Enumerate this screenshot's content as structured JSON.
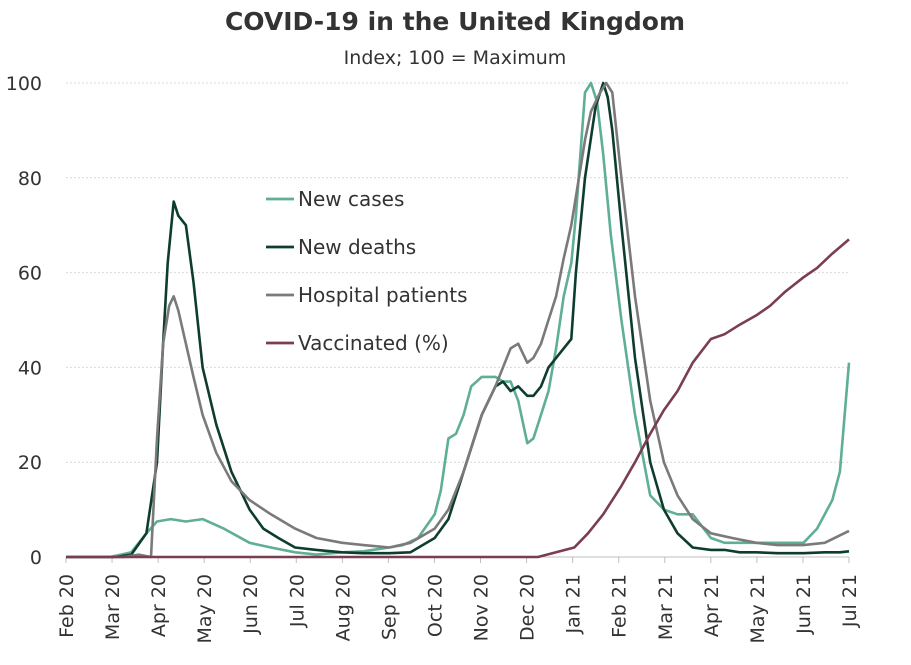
{
  "chart_data": {
    "type": "line",
    "title": "COVID-19 in the United Kingdom",
    "subtitle": "Index; 100 = Maximum",
    "xlabel": "",
    "ylabel": "",
    "ylim": [
      0,
      100
    ],
    "yticks": [
      0,
      20,
      40,
      60,
      80,
      100
    ],
    "grid": "horizontal",
    "legend_position": "center-left",
    "x_ticks": [
      "Feb 20",
      "Mar 20",
      "Apr 20",
      "May 20",
      "Jun 20",
      "Jul 20",
      "Aug 20",
      "Sep 20",
      "Oct 20",
      "Nov 20",
      "Dec 20",
      "Jan 21",
      "Feb 21",
      "Mar 21",
      "Apr 21",
      "May 21",
      "Jun 21",
      "Jul 21"
    ],
    "series": [
      {
        "name": "New cases",
        "color": "#5fae97",
        "x": [
          "2020-02-01",
          "2020-03-01",
          "2020-03-15",
          "2020-03-25",
          "2020-04-01",
          "2020-04-10",
          "2020-04-20",
          "2020-05-01",
          "2020-05-15",
          "2020-06-01",
          "2020-06-15",
          "2020-07-01",
          "2020-07-15",
          "2020-08-01",
          "2020-08-15",
          "2020-09-01",
          "2020-09-10",
          "2020-09-20",
          "2020-10-01",
          "2020-10-05",
          "2020-10-10",
          "2020-10-15",
          "2020-10-20",
          "2020-10-25",
          "2020-11-01",
          "2020-11-10",
          "2020-11-15",
          "2020-11-20",
          "2020-11-25",
          "2020-12-01",
          "2020-12-05",
          "2020-12-10",
          "2020-12-15",
          "2020-12-20",
          "2020-12-25",
          "2020-12-30",
          "2021-01-02",
          "2021-01-05",
          "2021-01-08",
          "2021-01-12",
          "2021-01-16",
          "2021-01-20",
          "2021-01-25",
          "2021-02-01",
          "2021-02-10",
          "2021-02-20",
          "2021-03-01",
          "2021-03-10",
          "2021-03-20",
          "2021-04-01",
          "2021-04-10",
          "2021-04-20",
          "2021-05-01",
          "2021-05-10",
          "2021-05-20",
          "2021-06-01",
          "2021-06-10",
          "2021-06-20",
          "2021-06-25",
          "2021-07-01"
        ],
        "y": [
          0,
          0,
          1,
          5,
          7.5,
          8,
          7.5,
          8,
          6,
          3,
          2,
          1,
          0.5,
          1,
          1.2,
          2,
          2.5,
          4,
          9,
          14,
          25,
          26,
          30,
          36,
          38,
          38,
          37,
          37,
          33,
          24,
          25,
          30,
          35,
          44,
          55,
          62,
          72,
          85,
          98,
          100,
          96,
          85,
          68,
          50,
          30,
          13,
          10,
          9,
          9,
          4,
          3,
          3,
          3,
          3,
          3,
          3,
          6,
          12,
          18,
          41
        ]
      },
      {
        "name": "New deaths",
        "color": "#0e3d30",
        "x": [
          "2020-02-01",
          "2020-03-05",
          "2020-03-15",
          "2020-03-25",
          "2020-04-01",
          "2020-04-05",
          "2020-04-08",
          "2020-04-12",
          "2020-04-15",
          "2020-04-20",
          "2020-04-25",
          "2020-05-01",
          "2020-05-10",
          "2020-05-20",
          "2020-06-01",
          "2020-06-10",
          "2020-06-20",
          "2020-07-01",
          "2020-07-15",
          "2020-08-01",
          "2020-08-15",
          "2020-09-01",
          "2020-09-15",
          "2020-10-01",
          "2020-10-10",
          "2020-10-20",
          "2020-11-01",
          "2020-11-10",
          "2020-11-15",
          "2020-11-20",
          "2020-11-25",
          "2020-12-01",
          "2020-12-05",
          "2020-12-10",
          "2020-12-15",
          "2020-12-20",
          "2020-12-25",
          "2020-12-30",
          "2021-01-02",
          "2021-01-08",
          "2021-01-15",
          "2021-01-20",
          "2021-01-23",
          "2021-01-26",
          "2021-02-01",
          "2021-02-10",
          "2021-02-20",
          "2021-03-01",
          "2021-03-10",
          "2021-03-20",
          "2021-04-01",
          "2021-04-10",
          "2021-04-20",
          "2021-05-01",
          "2021-05-15",
          "2021-06-01",
          "2021-06-15",
          "2021-06-25",
          "2021-07-01"
        ],
        "y": [
          0,
          0,
          0.5,
          5,
          20,
          45,
          62,
          75,
          72,
          70,
          58,
          40,
          28,
          18,
          10,
          6,
          4,
          2,
          1.5,
          1,
          0.8,
          0.8,
          1,
          4,
          8,
          18,
          30,
          36,
          37,
          35,
          36,
          34,
          34,
          36,
          40,
          42,
          44,
          46,
          60,
          80,
          95,
          100,
          97,
          90,
          70,
          42,
          20,
          10,
          5,
          2,
          1.5,
          1.5,
          1,
          1,
          0.8,
          0.8,
          1,
          1,
          1.2
        ]
      },
      {
        "name": "Hospital patients",
        "color": "#7a7a7a",
        "x": [
          "2020-02-01",
          "2020-03-10",
          "2020-03-20",
          "2020-03-28",
          "2020-04-01",
          "2020-04-05",
          "2020-04-09",
          "2020-04-12",
          "2020-04-15",
          "2020-04-20",
          "2020-04-25",
          "2020-05-01",
          "2020-05-10",
          "2020-05-20",
          "2020-06-01",
          "2020-06-15",
          "2020-07-01",
          "2020-07-15",
          "2020-08-01",
          "2020-08-15",
          "2020-09-01",
          "2020-09-15",
          "2020-10-01",
          "2020-10-10",
          "2020-10-20",
          "2020-11-01",
          "2020-11-10",
          "2020-11-15",
          "2020-11-20",
          "2020-11-25",
          "2020-12-01",
          "2020-12-05",
          "2020-12-10",
          "2020-12-15",
          "2020-12-20",
          "2020-12-25",
          "2020-12-30",
          "2021-01-02",
          "2021-01-08",
          "2021-01-12",
          "2021-01-18",
          "2021-01-22",
          "2021-01-26",
          "2021-02-01",
          "2021-02-10",
          "2021-02-20",
          "2021-03-01",
          "2021-03-10",
          "2021-03-20",
          "2021-04-01",
          "2021-04-15",
          "2021-05-01",
          "2021-05-15",
          "2021-06-01",
          "2021-06-15",
          "2021-07-01"
        ],
        "y": [
          0,
          0,
          0.5,
          0,
          25,
          45,
          53,
          55,
          52,
          45,
          38,
          30,
          22,
          16,
          12,
          9,
          6,
          4,
          3,
          2.5,
          2,
          3,
          6,
          10,
          18,
          30,
          36,
          40,
          44,
          45,
          41,
          42,
          45,
          50,
          55,
          63,
          70,
          76,
          88,
          94,
          98,
          100,
          98,
          80,
          55,
          33,
          20,
          13,
          8,
          5,
          4,
          3,
          2.5,
          2.5,
          3,
          5.5
        ]
      },
      {
        "name": "Vaccinated (%)",
        "color": "#7b3e50",
        "x": [
          "2020-02-01",
          "2020-12-08",
          "2020-12-20",
          "2021-01-01",
          "2021-01-10",
          "2021-01-20",
          "2021-02-01",
          "2021-02-10",
          "2021-02-20",
          "2021-03-01",
          "2021-03-10",
          "2021-03-20",
          "2021-04-01",
          "2021-04-10",
          "2021-04-20",
          "2021-05-01",
          "2021-05-10",
          "2021-05-20",
          "2021-06-01",
          "2021-06-10",
          "2021-06-20",
          "2021-07-01"
        ],
        "y": [
          0,
          0,
          1,
          2,
          5,
          9,
          15,
          20,
          26,
          31,
          35,
          41,
          46,
          47,
          49,
          51,
          53,
          56,
          59,
          61,
          64,
          67
        ]
      }
    ]
  }
}
